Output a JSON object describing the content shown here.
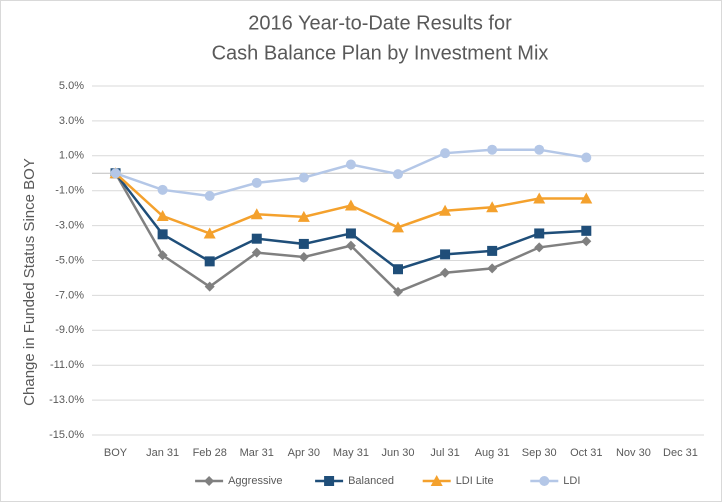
{
  "chart_data": {
    "type": "line",
    "title": [
      "2016 Year-to-Date Results for",
      "Cash Balance Plan by Investment Mix"
    ],
    "ylabel": "Change in Funded Status Since BOY",
    "categories": [
      "BOY",
      "Jan 31",
      "Feb 28",
      "Mar 31",
      "Apr 30",
      "May 31",
      "Jun 30",
      "Jul 31",
      "Aug 31",
      "Sep 30",
      "Oct 31",
      "Nov 30",
      "Dec 31"
    ],
    "series": [
      {
        "name": "Aggressive",
        "color": "#808080",
        "marker": "diamond",
        "values": [
          0,
          -4.7,
          -6.5,
          -4.55,
          -4.8,
          -4.15,
          -6.8,
          -5.7,
          -5.45,
          -4.25,
          -3.9,
          null,
          null
        ]
      },
      {
        "name": "Balanced",
        "color": "#1f4e79",
        "marker": "square",
        "values": [
          0,
          -3.5,
          -5.05,
          -3.75,
          -4.05,
          -3.45,
          -5.5,
          -4.65,
          -4.45,
          -3.45,
          -3.3,
          null,
          null
        ]
      },
      {
        "name": "LDI Lite",
        "color": "#f4a12d",
        "marker": "triangle",
        "values": [
          0,
          -2.45,
          -3.45,
          -2.35,
          -2.5,
          -1.85,
          -3.1,
          -2.15,
          -1.95,
          -1.45,
          -1.45,
          null,
          null
        ]
      },
      {
        "name": "LDI",
        "color": "#b4c7e7",
        "marker": "circle",
        "values": [
          0,
          -0.95,
          -1.3,
          -0.55,
          -0.25,
          0.5,
          -0.05,
          1.15,
          1.35,
          1.35,
          0.9,
          null,
          null
        ]
      }
    ],
    "ylim": [
      -15,
      5
    ],
    "yticks": [
      {
        "value": -15,
        "label": "-15.0%"
      },
      {
        "value": -13,
        "label": "-13.0%"
      },
      {
        "value": -11,
        "label": "-11.0%"
      },
      {
        "value": -9,
        "label": "-9.0%"
      },
      {
        "value": -7,
        "label": "-7.0%"
      },
      {
        "value": -5,
        "label": "-5.0%"
      },
      {
        "value": -3,
        "label": "-3.0%"
      },
      {
        "value": -1,
        "label": "-1.0%"
      },
      {
        "value": 1,
        "label": "1.0%"
      },
      {
        "value": 3,
        "label": "3.0%"
      },
      {
        "value": 5,
        "label": "5.0%"
      }
    ],
    "grid": true,
    "legend": "bottom"
  }
}
